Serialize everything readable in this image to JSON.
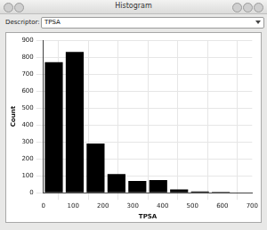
{
  "window": {
    "title": "Histogram",
    "descriptor_label": "Descriptor:",
    "descriptor": "TPSA"
  },
  "chart_data": {
    "type": "histogram",
    "x_label": "TPSA",
    "y_label": "Count",
    "bins": [
      0,
      70,
      140,
      210,
      280,
      350,
      420,
      490,
      560,
      630,
      700
    ],
    "values": [
      770,
      830,
      290,
      110,
      70,
      75,
      20,
      8,
      5,
      3
    ],
    "color": "#000000",
    "xlim": [
      0,
      700
    ],
    "xticks": [
      0,
      100,
      200,
      300,
      400,
      500,
      600,
      700
    ],
    "ylim": [
      0,
      900
    ],
    "yticks": [
      0,
      100,
      200,
      300,
      400,
      500,
      600,
      700,
      800,
      900
    ],
    "grid": true
  }
}
